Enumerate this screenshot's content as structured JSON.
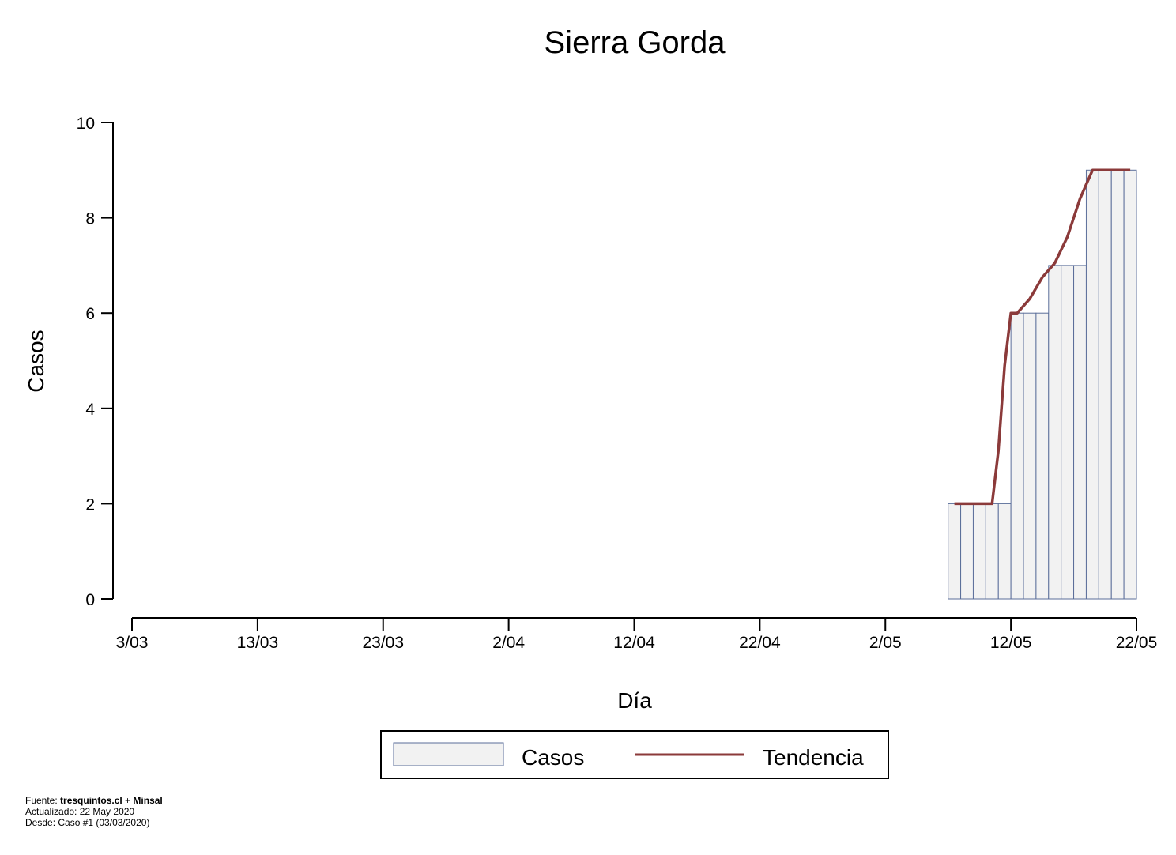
{
  "chart_data": {
    "type": "bar",
    "title": "Sierra Gorda",
    "xlabel": "Día",
    "ylabel": "Casos",
    "x_ticks": [
      "3/03",
      "13/03",
      "23/03",
      "2/04",
      "12/04",
      "22/04",
      "2/05",
      "12/05",
      "22/05"
    ],
    "x_dates": [
      "2020-03-03",
      "2020-03-13",
      "2020-03-23",
      "2020-04-02",
      "2020-04-12",
      "2020-04-22",
      "2020-05-02",
      "2020-05-12",
      "2020-05-22"
    ],
    "y_ticks": [
      0,
      2,
      4,
      6,
      8,
      10
    ],
    "ylim": [
      0,
      10
    ],
    "xlim": [
      "2020-03-03",
      "2020-05-22"
    ],
    "grid": false,
    "legend_position": "bottom-center",
    "series": [
      {
        "name": "Casos",
        "type": "bar",
        "color": "#f2f2f2",
        "edge_color": "#5b6e9a",
        "dates": [
          "2020-05-07",
          "2020-05-08",
          "2020-05-09",
          "2020-05-10",
          "2020-05-11",
          "2020-05-12",
          "2020-05-13",
          "2020-05-14",
          "2020-05-15",
          "2020-05-16",
          "2020-05-17",
          "2020-05-18",
          "2020-05-19",
          "2020-05-20",
          "2020-05-21"
        ],
        "values": [
          2,
          2,
          2,
          2,
          2,
          6,
          6,
          6,
          7,
          7,
          7,
          9,
          9,
          9,
          9
        ]
      },
      {
        "name": "Tendencia",
        "type": "line",
        "color": "#8b3a3a",
        "dates": [
          "2020-05-07",
          "2020-05-08",
          "2020-05-09",
          "2020-05-10",
          "2020-05-10.5",
          "2020-05-11",
          "2020-05-11.5",
          "2020-05-12",
          "2020-05-13",
          "2020-05-14",
          "2020-05-15",
          "2020-05-16",
          "2020-05-17",
          "2020-05-18",
          "2020-05-19",
          "2020-05-20",
          "2020-05-21"
        ],
        "values": [
          2,
          2,
          2,
          2,
          3.1,
          4.9,
          6.0,
          6.0,
          6.3,
          6.75,
          7.05,
          7.6,
          8.4,
          9.0,
          9.0,
          9.0,
          9.0
        ]
      }
    ]
  },
  "footer": {
    "fuente_label": "Fuente: ",
    "fuente_source": "tresquintos.cl",
    "fuente_plus": " + ",
    "fuente_minsal": "Minsal",
    "actualizado": "Actualizado: 22 May 2020",
    "desde": "Desde: Caso #1  (03/03/2020)"
  }
}
